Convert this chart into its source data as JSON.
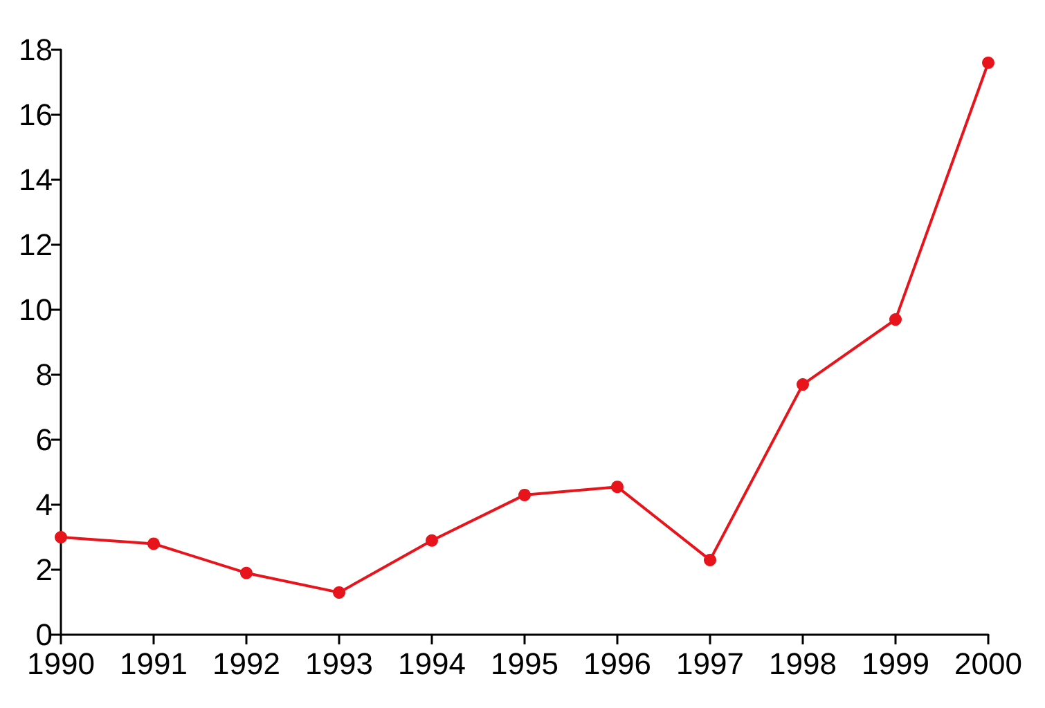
{
  "chart_data": {
    "type": "line",
    "x": [
      1990,
      1991,
      1992,
      1993,
      1994,
      1995,
      1996,
      1997,
      1998,
      1999,
      2000
    ],
    "series": [
      {
        "color": "#e8141b",
        "values": [
          3.0,
          2.8,
          1.9,
          1.3,
          2.9,
          4.3,
          4.55,
          2.3,
          7.7,
          9.7,
          17.6
        ]
      }
    ],
    "xlim": [
      1990,
      2000
    ],
    "xticks": [
      1990,
      1991,
      1992,
      1993,
      1994,
      1995,
      1996,
      1997,
      1998,
      1999,
      2000
    ],
    "ylim": [
      0,
      18
    ],
    "yticks": [
      0,
      2,
      4,
      6,
      8,
      10,
      12,
      14,
      16,
      18
    ],
    "grid": false,
    "marker": "circle",
    "line_style": "solid"
  }
}
